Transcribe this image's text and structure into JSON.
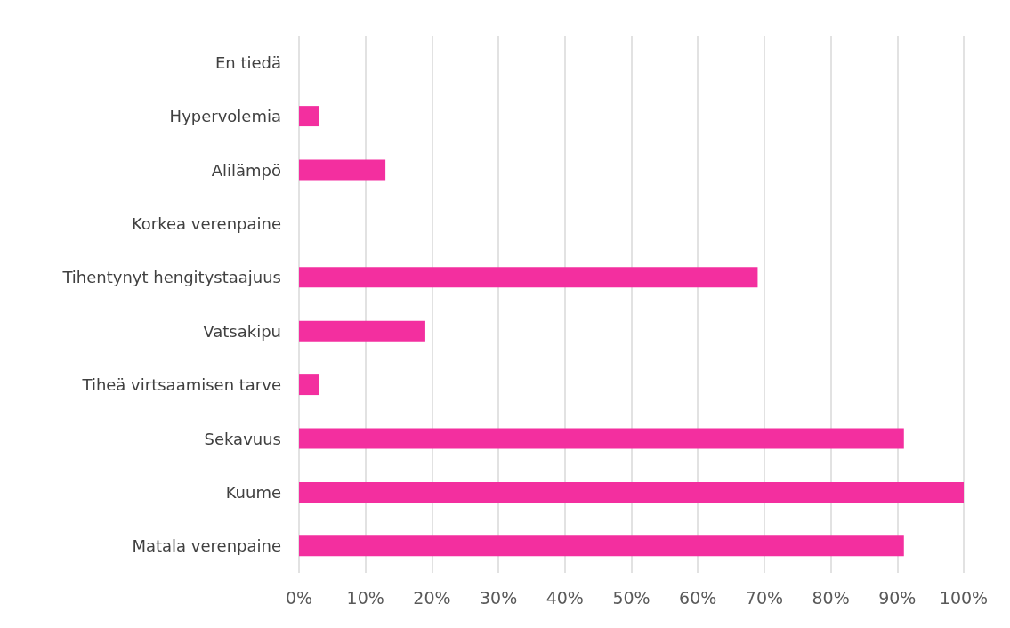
{
  "chart_data": {
    "type": "bar",
    "orientation": "horizontal",
    "categories": [
      "En tiedä",
      "Hypervolemia",
      "Alilämpö",
      "Korkea verenpaine",
      "Tihentynyt hengitystaajuus",
      "Vatsakipu",
      "Tiheä virtsaamisen tarve",
      "Sekavuus",
      "Kuume",
      "Matala verenpaine"
    ],
    "values": [
      0,
      3,
      13,
      0,
      69,
      19,
      3,
      91,
      100,
      91
    ],
    "color": "#f32f9f",
    "xlim": [
      0,
      100
    ],
    "xticks": [
      {
        "value": 0,
        "label": "0%"
      },
      {
        "value": 10,
        "label": "10%"
      },
      {
        "value": 20,
        "label": "20%"
      },
      {
        "value": 30,
        "label": "30%"
      },
      {
        "value": 40,
        "label": "40%"
      },
      {
        "value": 50,
        "label": "50%"
      },
      {
        "value": 60,
        "label": "60%"
      },
      {
        "value": 70,
        "label": "70%"
      },
      {
        "value": 80,
        "label": "80%"
      },
      {
        "value": 90,
        "label": "90%"
      },
      {
        "value": 100,
        "label": "100%"
      }
    ],
    "grid": "x"
  }
}
